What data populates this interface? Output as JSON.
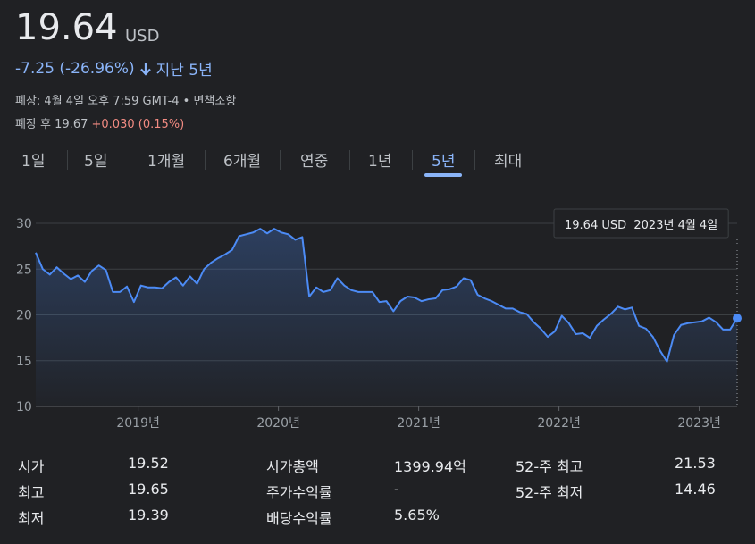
{
  "header": {
    "price": "19.64",
    "currency": "USD",
    "change": "-7.25 (-26.96%)",
    "period": "지난 5년",
    "closed": "폐장: 4월 4일 오후 7:59 GMT-4 • ",
    "disclaimer": "면책조항",
    "after_label": "폐장 후 19.67",
    "after_change": "+0.030 (0.15%)"
  },
  "tabs": [
    "1일",
    "5일",
    "1개월",
    "6개월",
    "연중",
    "1년",
    "5년",
    "최대"
  ],
  "selected_tab": "5년",
  "chart_data": {
    "type": "line",
    "tooltip": "19.64 USD  2023년 4월 4일",
    "x": [
      2018.27,
      2018.32,
      2018.37,
      2018.42,
      2018.47,
      2018.52,
      2018.57,
      2018.62,
      2018.67,
      2018.72,
      2018.77,
      2018.82,
      2018.87,
      2018.92,
      2018.97,
      2019.02,
      2019.07,
      2019.12,
      2019.17,
      2019.22,
      2019.27,
      2019.32,
      2019.37,
      2019.42,
      2019.47,
      2019.52,
      2019.57,
      2019.62,
      2019.67,
      2019.72,
      2019.77,
      2019.82,
      2019.87,
      2019.92,
      2019.97,
      2020.02,
      2020.07,
      2020.12,
      2020.17,
      2020.22,
      2020.27,
      2020.32,
      2020.37,
      2020.42,
      2020.47,
      2020.52,
      2020.57,
      2020.62,
      2020.67,
      2020.72,
      2020.77,
      2020.82,
      2020.87,
      2020.92,
      2020.97,
      2021.02,
      2021.07,
      2021.12,
      2021.17,
      2021.22,
      2021.27,
      2021.32,
      2021.37,
      2021.42,
      2021.47,
      2021.52,
      2021.57,
      2021.62,
      2021.67,
      2021.72,
      2021.77,
      2021.82,
      2021.87,
      2021.92,
      2021.97,
      2022.02,
      2022.07,
      2022.12,
      2022.17,
      2022.22,
      2022.27,
      2022.32,
      2022.37,
      2022.42,
      2022.47,
      2022.52,
      2022.57,
      2022.62,
      2022.67,
      2022.72,
      2022.77,
      2022.82,
      2022.87,
      2022.92,
      2022.97,
      2023.02,
      2023.07,
      2023.12,
      2023.17,
      2023.22,
      2023.27
    ],
    "series": [
      {
        "color": "#4c8bf5",
        "values": [
          26.8,
          25.0,
          24.4,
          25.2,
          24.5,
          23.9,
          24.3,
          23.6,
          24.8,
          25.4,
          24.9,
          22.5,
          22.5,
          23.1,
          21.4,
          23.2,
          23.0,
          23.0,
          22.9,
          23.6,
          24.1,
          23.2,
          24.2,
          23.4,
          25.0,
          25.7,
          26.2,
          26.6,
          27.1,
          28.6,
          28.8,
          29.0,
          29.4,
          28.9,
          29.4,
          29.0,
          28.8,
          28.2,
          28.5,
          22.0,
          23.0,
          22.5,
          22.7,
          24.0,
          23.2,
          22.7,
          22.5,
          22.5,
          22.5,
          21.4,
          21.5,
          20.4,
          21.5,
          22.0,
          21.9,
          21.5,
          21.7,
          21.8,
          22.7,
          22.8,
          23.1,
          24.0,
          23.8,
          22.2,
          21.8,
          21.5,
          21.1,
          20.7,
          20.7,
          20.3,
          20.1,
          19.2,
          18.5,
          17.6,
          18.2,
          19.9,
          19.1,
          17.9,
          18.0,
          17.5,
          18.8,
          19.5,
          20.1,
          20.9,
          20.6,
          20.8,
          18.8,
          18.5,
          17.6,
          16.1,
          14.9,
          17.8,
          18.9,
          19.1,
          19.2,
          19.3,
          19.7,
          19.2,
          18.4,
          18.4,
          19.64
        ]
      }
    ],
    "xlim": [
      2018.27,
      2023.27
    ],
    "xticks": [
      {
        "value": 2019,
        "label": "2019년"
      },
      {
        "value": 2020,
        "label": "2020년"
      },
      {
        "value": 2021,
        "label": "2021년"
      },
      {
        "value": 2022,
        "label": "2022년"
      },
      {
        "value": 2023,
        "label": "2023년"
      }
    ],
    "ylim": [
      10,
      30
    ],
    "yticks": [
      10,
      15,
      20,
      25,
      30
    ],
    "grid": true
  },
  "stats": [
    [
      {
        "label": "시가",
        "value": "19.52"
      },
      {
        "label": "최고",
        "value": "19.65"
      },
      {
        "label": "최저",
        "value": "19.39"
      }
    ],
    [
      {
        "label": "시가총액",
        "value": "1399.94억"
      },
      {
        "label": "주가수익률",
        "value": "-"
      },
      {
        "label": "배당수익률",
        "value": "5.65%"
      }
    ],
    [
      {
        "label": "52-주 최고",
        "value": "21.53"
      },
      {
        "label": "52-주 최저",
        "value": "14.46"
      }
    ]
  ]
}
